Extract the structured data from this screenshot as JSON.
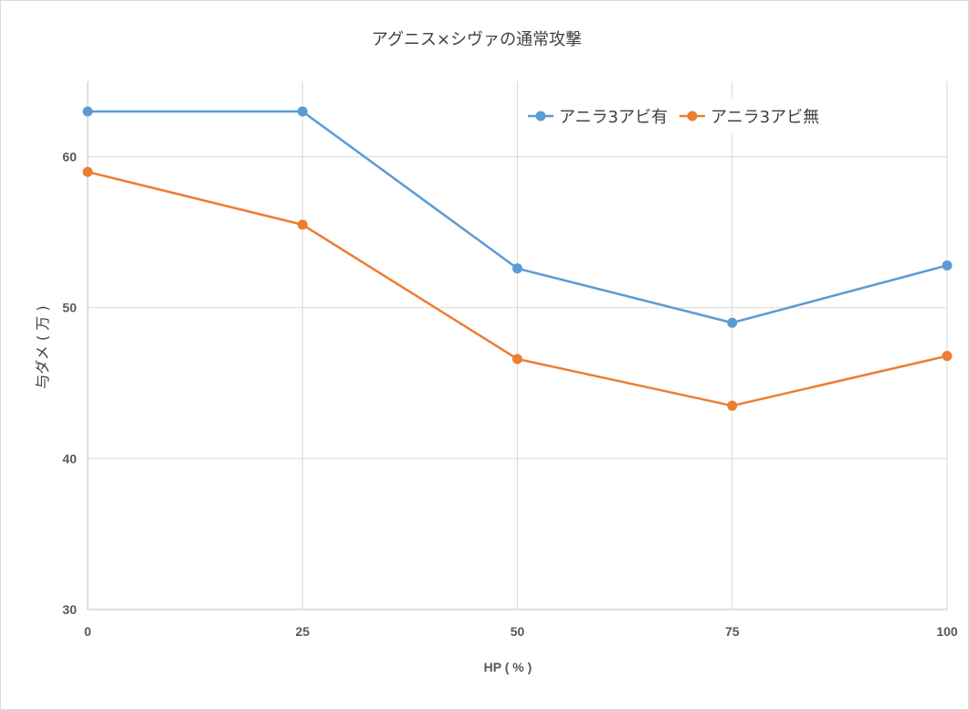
{
  "chart_data": {
    "type": "line",
    "title": "アグニス×シヴァの通常攻撃",
    "xlabel": "HP ( % )",
    "ylabel": "与ダメ ( 万 )",
    "x": [
      0,
      25,
      50,
      75,
      100
    ],
    "x_tick_labels": [
      "0",
      "25",
      "50",
      "75",
      "100"
    ],
    "ylim": [
      30,
      65
    ],
    "y_ticks": [
      30,
      40,
      50,
      60
    ],
    "grid": true,
    "legend_position": "top-right",
    "series": [
      {
        "name": "アニラ3アビ有",
        "color": "#5b9bd5",
        "values": [
          63,
          63,
          52.6,
          49,
          52.8
        ]
      },
      {
        "name": "アニラ3アビ無",
        "color": "#ed7d31",
        "values": [
          59,
          55.5,
          46.6,
          43.5,
          46.8
        ]
      }
    ]
  }
}
